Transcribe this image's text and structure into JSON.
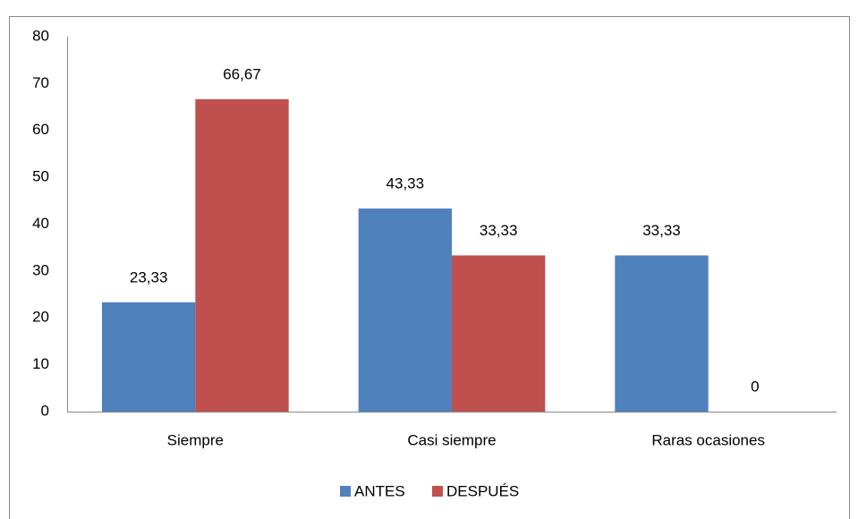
{
  "chart_data": {
    "type": "bar",
    "categories": [
      "Siempre",
      "Casi siempre",
      "Raras ocasiones"
    ],
    "series": [
      {
        "name": "ANTES",
        "color": "#4f81bd",
        "values": [
          23.33,
          43.33,
          33.33
        ],
        "value_labels": [
          "23,33",
          "43,33",
          "33,33"
        ]
      },
      {
        "name": "DESPUÉS",
        "color": "#c0504d",
        "values": [
          66.67,
          33.33,
          0
        ],
        "value_labels": [
          "66,67",
          "33,33",
          "0"
        ]
      }
    ],
    "ylim": [
      0,
      80
    ],
    "yticks": [
      0,
      10,
      20,
      30,
      40,
      50,
      60,
      70,
      80
    ],
    "grid": false,
    "legend": "bottom"
  }
}
